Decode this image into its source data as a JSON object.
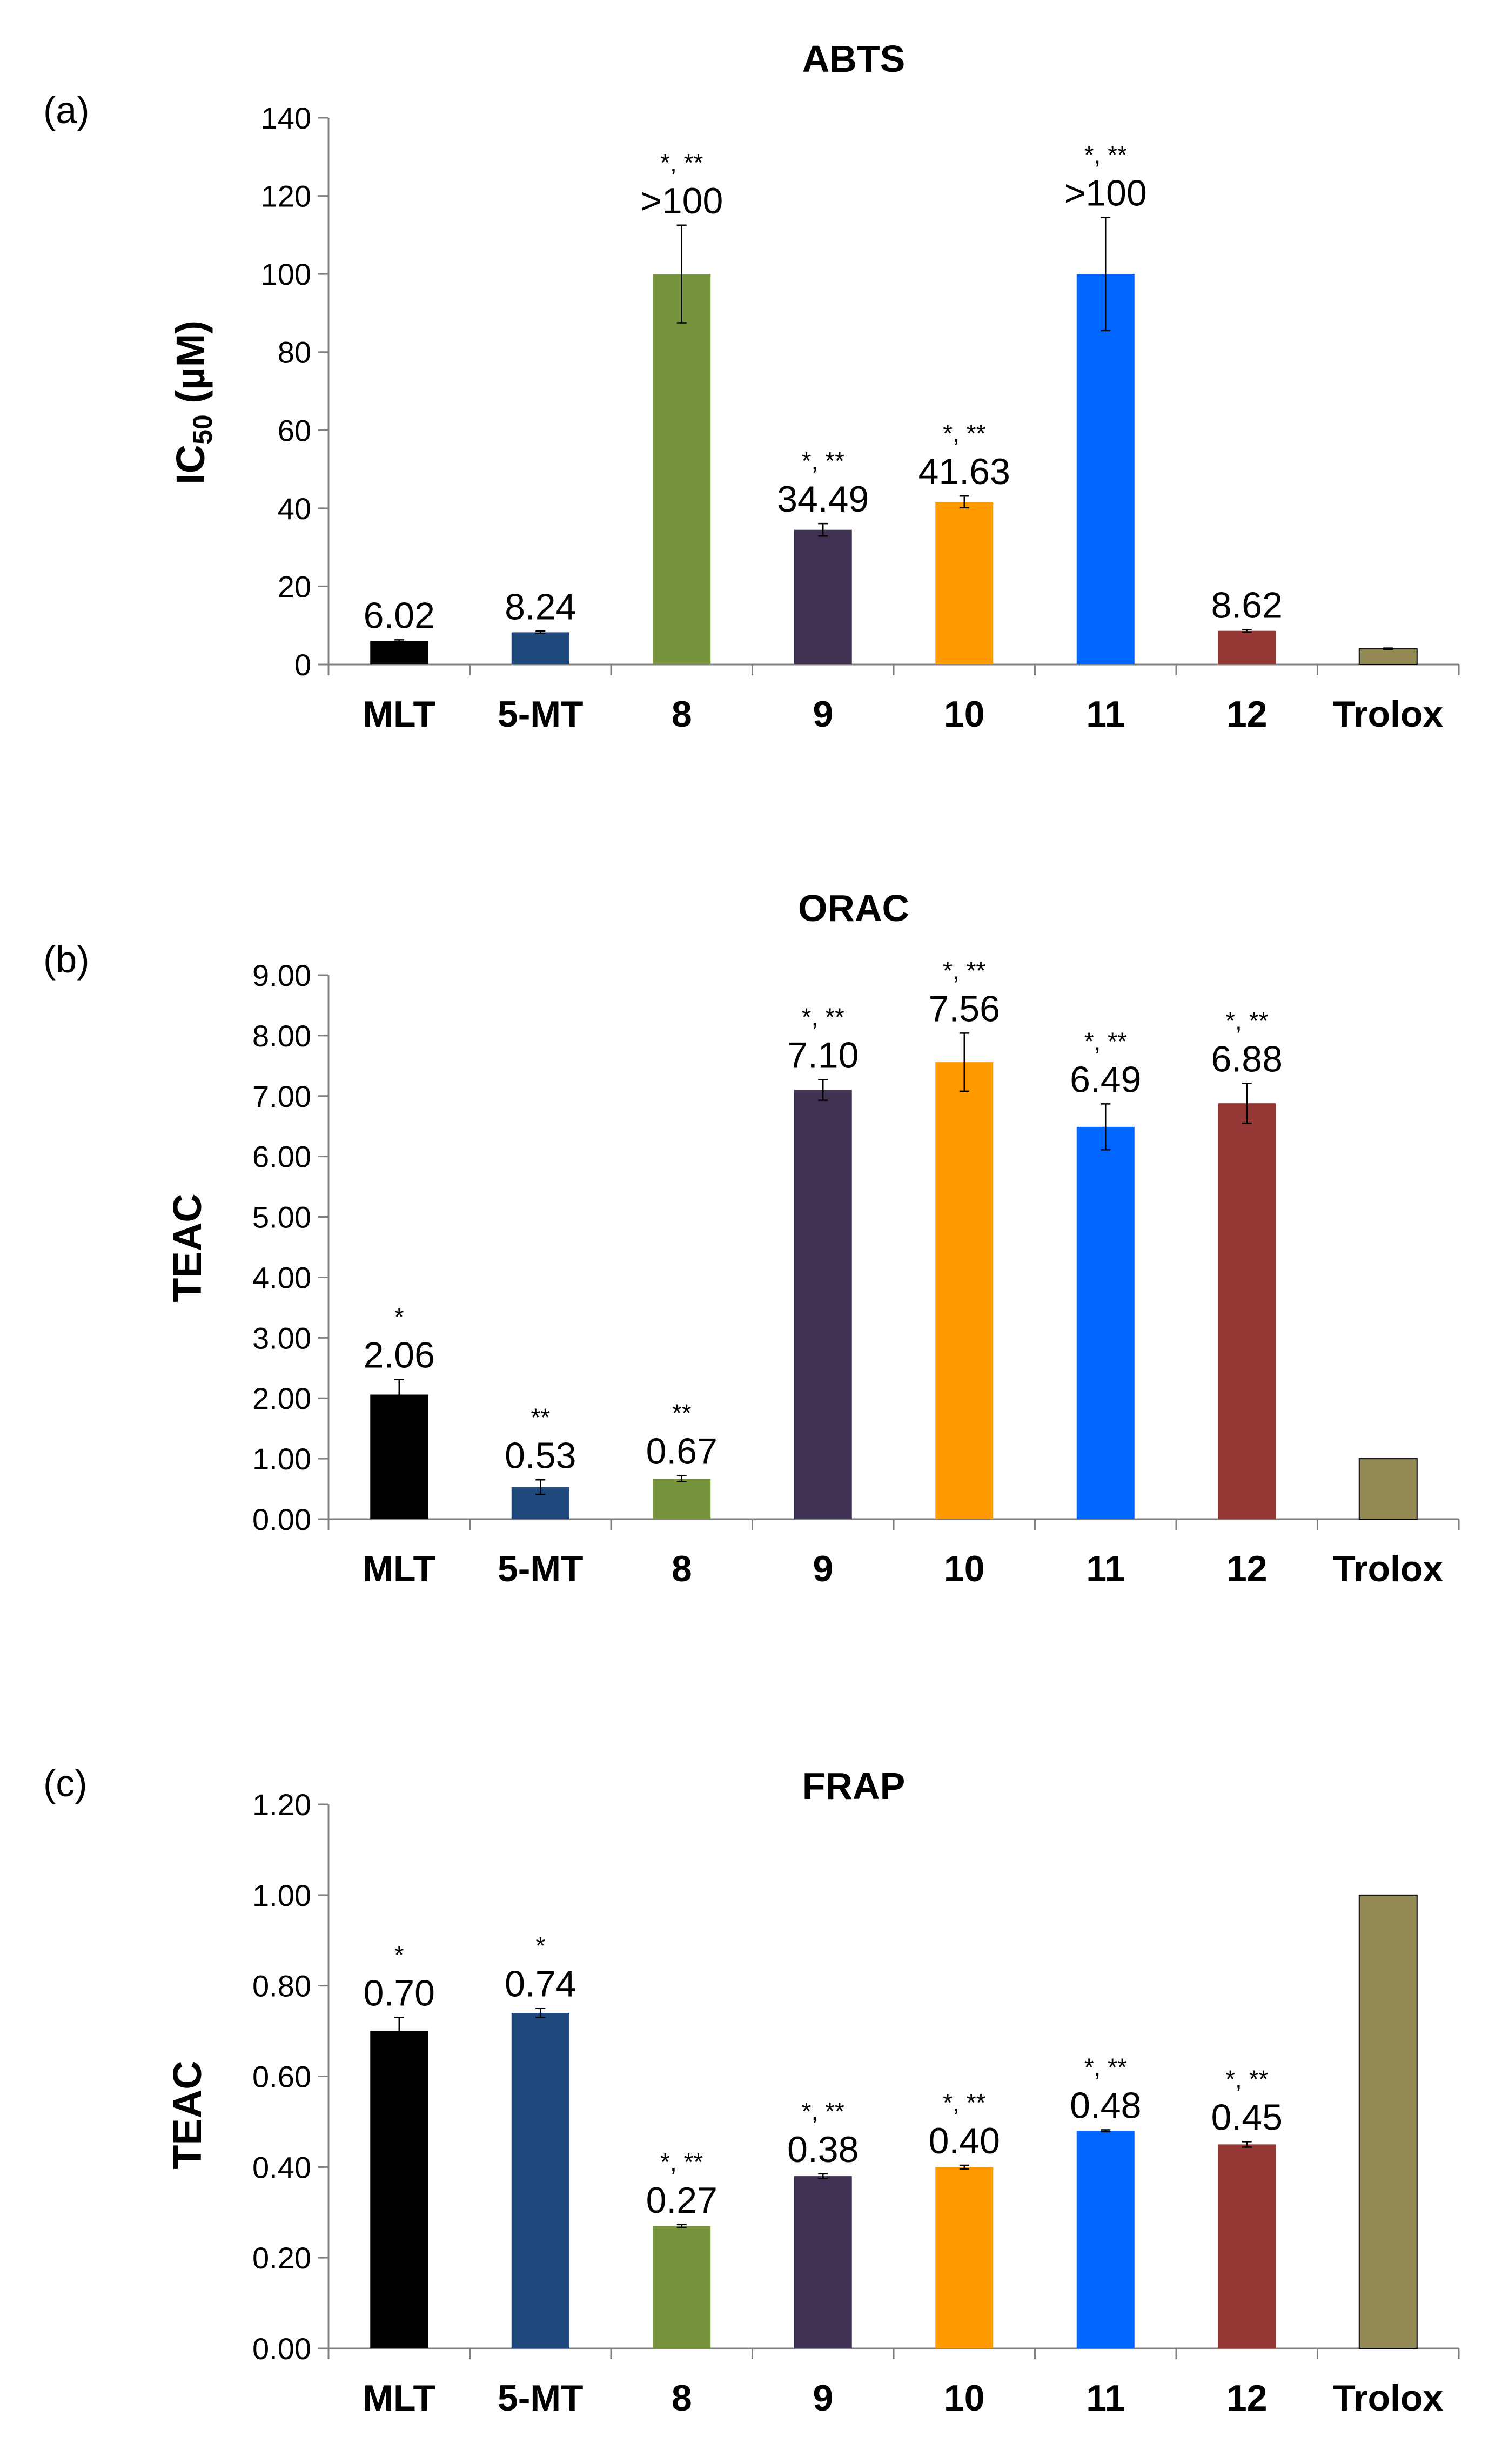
{
  "chart_data": [
    {
      "type": "bar",
      "panel": "(a)",
      "title": "ABTS",
      "ylabel": "IC50 (µM)",
      "ylabel_main": "IC",
      "ylabel_sub": "50",
      "ylabel_unit": " (µM)",
      "ylim": [
        0,
        140
      ],
      "yticks": [
        "0",
        "20",
        "40",
        "60",
        "80",
        "100",
        "120",
        "140"
      ],
      "categories": [
        "MLT",
        "5-MT",
        "8",
        "9",
        "10",
        "11",
        "12",
        "Trolox"
      ],
      "values": [
        6.02,
        8.24,
        100,
        34.49,
        41.63,
        100,
        8.62,
        4.0
      ],
      "errors": [
        0.3,
        0.3,
        12.5,
        1.6,
        1.5,
        14.5,
        0.3,
        0.2
      ],
      "labels": [
        "6.02",
        "8.24",
        ">100",
        "34.49",
        "41.63",
        ">100",
        "8.62",
        ""
      ],
      "significance": [
        "",
        "",
        "*, **",
        "*, **",
        "*, **",
        "*, **",
        "",
        ""
      ],
      "colors": [
        "#000000",
        "#1f497d",
        "#77933c",
        "#3f3151",
        "#ff9900",
        "#0066ff",
        "#953735",
        "#948a54"
      ]
    },
    {
      "type": "bar",
      "panel": "(b)",
      "title": "ORAC",
      "ylabel": "TEAC",
      "ylim": [
        0,
        9
      ],
      "yticks": [
        "0.00",
        "1.00",
        "2.00",
        "3.00",
        "4.00",
        "5.00",
        "6.00",
        "7.00",
        "8.00",
        "9.00"
      ],
      "categories": [
        "MLT",
        "5-MT",
        "8",
        "9",
        "10",
        "11",
        "12",
        "Trolox"
      ],
      "values": [
        2.06,
        0.53,
        0.67,
        7.1,
        7.56,
        6.49,
        6.88,
        1.0
      ],
      "errors": [
        0.25,
        0.12,
        0.05,
        0.17,
        0.48,
        0.38,
        0.33,
        0
      ],
      "labels": [
        "2.06",
        "0.53",
        "0.67",
        "7.10",
        "7.56",
        "6.49",
        "6.88",
        ""
      ],
      "significance": [
        "*",
        "**",
        "**",
        "*, **",
        "*, **",
        "*, **",
        "*, **",
        ""
      ],
      "colors": [
        "#000000",
        "#1f497d",
        "#77933c",
        "#3f3151",
        "#ff9900",
        "#0066ff",
        "#953735",
        "#948a54"
      ]
    },
    {
      "type": "bar",
      "panel": "(c)",
      "title": "FRAP",
      "ylabel": "TEAC",
      "ylim": [
        0,
        1.2
      ],
      "yticks": [
        "0.00",
        "0.20",
        "0.40",
        "0.60",
        "0.80",
        "1.00",
        "1.20"
      ],
      "categories": [
        "MLT",
        "5-MT",
        "8",
        "9",
        "10",
        "11",
        "12",
        "Trolox"
      ],
      "values": [
        0.7,
        0.74,
        0.27,
        0.38,
        0.4,
        0.48,
        0.45,
        1.0
      ],
      "errors": [
        0.03,
        0.01,
        0.003,
        0.005,
        0.004,
        0.002,
        0.006,
        0
      ],
      "labels": [
        "0.70",
        "0.74",
        "0.27",
        "0.38",
        "0.40",
        "0.48",
        "0.45",
        ""
      ],
      "significance": [
        "*",
        "*",
        "*, **",
        "*, **",
        "*, **",
        "*, **",
        "*, **",
        ""
      ],
      "colors": [
        "#000000",
        "#1f497d",
        "#77933c",
        "#3f3151",
        "#ff9900",
        "#0066ff",
        "#953735",
        "#948a54"
      ]
    }
  ]
}
